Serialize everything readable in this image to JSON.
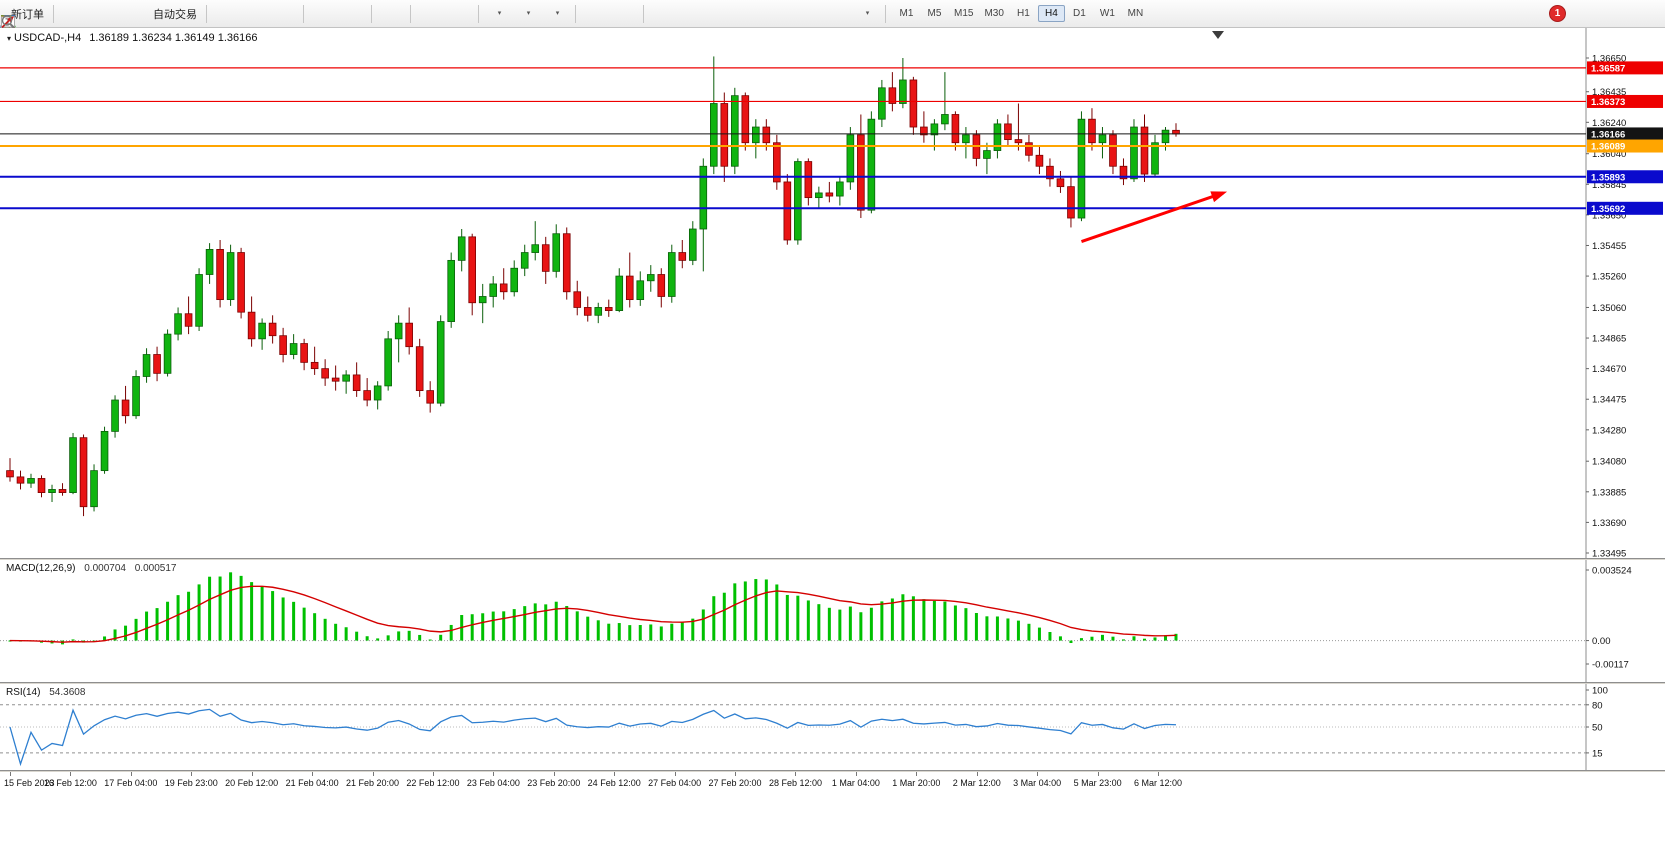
{
  "toolbar": {
    "groups": [
      {
        "items": [
          {
            "name": "new-order-button",
            "icon": "new-order",
            "label": "新订单"
          }
        ]
      },
      {
        "items": [
          {
            "name": "market-watch-button",
            "icon": "market-watch"
          },
          {
            "name": "data-window-button",
            "icon": "data-window"
          },
          {
            "name": "navigator-button",
            "icon": "navigator"
          },
          {
            "name": "autotrading-button",
            "icon": "autotrading",
            "label": "自动交易"
          }
        ]
      },
      {
        "items": [
          {
            "name": "bar-chart-button",
            "icon": "chart-bars"
          },
          {
            "name": "candlestick-chart-button",
            "icon": "chart-candles"
          },
          {
            "name": "line-chart-button",
            "icon": "chart-line"
          }
        ]
      },
      {
        "items": [
          {
            "name": "zoom-in-button",
            "icon": "zoom-in"
          },
          {
            "name": "zoom-out-button",
            "icon": "zoom-out"
          }
        ]
      },
      {
        "items": [
          {
            "name": "tile-windows-button",
            "icon": "tile-windows"
          }
        ]
      },
      {
        "items": [
          {
            "name": "arrange-windows-button",
            "icon": "arrange-1"
          },
          {
            "name": "cascade-windows-button",
            "icon": "arrange-2"
          }
        ]
      },
      {
        "items": [
          {
            "name": "new-chart-button",
            "icon": "new-chart",
            "caret": true
          },
          {
            "name": "profiles-button",
            "icon": "clock",
            "caret": true
          },
          {
            "name": "templates-button",
            "icon": "templates",
            "caret": true
          }
        ]
      },
      {
        "items": [
          {
            "name": "cursor-button",
            "icon": "cursor"
          },
          {
            "name": "crosshair-button",
            "icon": "crosshair"
          }
        ]
      },
      {
        "items": [
          {
            "name": "vertical-line-button",
            "icon": "vline"
          },
          {
            "name": "horizontal-line-button",
            "icon": "hline"
          },
          {
            "name": "trendline-button",
            "icon": "tline"
          },
          {
            "name": "equidistant-channel-button",
            "icon": "channel"
          },
          {
            "name": "fibonacci-button",
            "icon": "fib"
          },
          {
            "name": "text-button",
            "icon": "text-a"
          },
          {
            "name": "text-label-button",
            "icon": "text-t"
          },
          {
            "name": "arrows-button",
            "icon": "arrows",
            "caret": true
          }
        ]
      }
    ],
    "timeframes": {
      "items": [
        "M1",
        "M5",
        "M15",
        "M30",
        "H1",
        "H4",
        "D1",
        "W1",
        "MN"
      ],
      "active": "H4"
    },
    "notification_count": "1"
  },
  "chart": {
    "title": "USDCAD-,H4",
    "ohlc_text": "1.36189 1.36234 1.36149 1.36166"
  },
  "chart_data": {
    "type": "candlestick",
    "symbol": "USDCAD-",
    "period": "H4",
    "ohlc_display": {
      "open": "1.36189",
      "high": "1.36234",
      "low": "1.36149",
      "close": "1.36166"
    },
    "bull_color": "#10B410",
    "bear_color": "#E81414",
    "price_axis_labels": [
      "1.36650",
      "1.36435",
      "1.36240",
      "1.36040",
      "1.35845",
      "1.35650",
      "1.35455",
      "1.35260",
      "1.35060",
      "1.34865",
      "1.34670",
      "1.34475",
      "1.34280",
      "1.34080",
      "1.33885",
      "1.33690",
      "1.33495"
    ],
    "time_axis_labels": [
      "15 Feb 2023",
      "16 Feb 12:00",
      "17 Feb 04:00",
      "19 Feb 23:00",
      "20 Feb 12:00",
      "21 Feb 04:00",
      "21 Feb 20:00",
      "22 Feb 12:00",
      "23 Feb 04:00",
      "23 Feb 20:00",
      "24 Feb 12:00",
      "27 Feb 04:00",
      "27 Feb 20:00",
      "28 Feb 12:00",
      "1 Mar 04:00",
      "1 Mar 20:00",
      "2 Mar 12:00",
      "3 Mar 04:00",
      "5 Mar 23:00",
      "6 Mar 12:00"
    ],
    "horizontal_lines": [
      {
        "price": 1.36587,
        "label": "1.36587",
        "color": "#EE0000",
        "width": 1.2
      },
      {
        "price": 1.36373,
        "label": "1.36373",
        "color": "#EE0000",
        "width": 1.2
      },
      {
        "price": 1.36166,
        "label": "1.36166",
        "color": "#141414",
        "width": 1,
        "role": "bid-price"
      },
      {
        "price": 1.36089,
        "label": "1.36089",
        "color": "#FFA500",
        "width": 2
      },
      {
        "price": 1.35893,
        "label": "1.35893",
        "color": "#0A0ACD",
        "width": 2
      },
      {
        "price": 1.35692,
        "label": "1.35692",
        "color": "#0A0ACD",
        "width": 2
      }
    ],
    "annotation_arrow": {
      "from_bar": 102,
      "from_price": 1.3548,
      "to_bar": 115.5,
      "to_price": 1.3579,
      "color": "#FF0000"
    },
    "candles": [
      [
        1.3402,
        1.341,
        1.3395,
        1.3398
      ],
      [
        1.3398,
        1.3402,
        1.339,
        1.3394
      ],
      [
        1.3394,
        1.34,
        1.3391,
        1.3397
      ],
      [
        1.3397,
        1.3399,
        1.3385,
        1.3388
      ],
      [
        1.3388,
        1.3393,
        1.3382,
        1.339
      ],
      [
        1.339,
        1.3394,
        1.3386,
        1.3388
      ],
      [
        1.3388,
        1.3426,
        1.3387,
        1.3423
      ],
      [
        1.3423,
        1.3425,
        1.3373,
        1.3379
      ],
      [
        1.3379,
        1.3406,
        1.3376,
        1.3402
      ],
      [
        1.3402,
        1.343,
        1.34,
        1.3427
      ],
      [
        1.3427,
        1.345,
        1.3423,
        1.3447
      ],
      [
        1.3447,
        1.3456,
        1.3432,
        1.3437
      ],
      [
        1.3437,
        1.3466,
        1.3435,
        1.3462
      ],
      [
        1.3462,
        1.348,
        1.3458,
        1.3476
      ],
      [
        1.3476,
        1.3481,
        1.3459,
        1.3464
      ],
      [
        1.3464,
        1.3492,
        1.3462,
        1.3489
      ],
      [
        1.3489,
        1.3506,
        1.3485,
        1.3502
      ],
      [
        1.3502,
        1.3513,
        1.3489,
        1.3494
      ],
      [
        1.3494,
        1.3531,
        1.3491,
        1.3527
      ],
      [
        1.3527,
        1.3547,
        1.3521,
        1.3543
      ],
      [
        1.3543,
        1.3549,
        1.3506,
        1.3511
      ],
      [
        1.3511,
        1.3546,
        1.3507,
        1.3541
      ],
      [
        1.3541,
        1.3544,
        1.3499,
        1.3503
      ],
      [
        1.3503,
        1.3513,
        1.3481,
        1.3486
      ],
      [
        1.3486,
        1.3499,
        1.3479,
        1.3496
      ],
      [
        1.3496,
        1.3501,
        1.3483,
        1.3488
      ],
      [
        1.3488,
        1.3493,
        1.3471,
        1.3476
      ],
      [
        1.3476,
        1.3489,
        1.3473,
        1.3483
      ],
      [
        1.3483,
        1.3486,
        1.3466,
        1.3471
      ],
      [
        1.3471,
        1.3481,
        1.3463,
        1.3467
      ],
      [
        1.3467,
        1.3473,
        1.3456,
        1.3461
      ],
      [
        1.3461,
        1.3469,
        1.3453,
        1.3459
      ],
      [
        1.3459,
        1.3466,
        1.3451,
        1.3463
      ],
      [
        1.3463,
        1.3471,
        1.3449,
        1.3453
      ],
      [
        1.3453,
        1.3461,
        1.3443,
        1.3447
      ],
      [
        1.3447,
        1.3459,
        1.3441,
        1.3456
      ],
      [
        1.3456,
        1.3491,
        1.3453,
        1.3486
      ],
      [
        1.3486,
        1.3501,
        1.3471,
        1.3496
      ],
      [
        1.3496,
        1.3506,
        1.3476,
        1.3481
      ],
      [
        1.3481,
        1.3486,
        1.3449,
        1.3453
      ],
      [
        1.3453,
        1.3459,
        1.3439,
        1.3445
      ],
      [
        1.3445,
        1.3501,
        1.3443,
        1.3497
      ],
      [
        1.3497,
        1.3541,
        1.3493,
        1.3536
      ],
      [
        1.3536,
        1.3556,
        1.3529,
        1.3551
      ],
      [
        1.3551,
        1.3553,
        1.3501,
        1.3509
      ],
      [
        1.3509,
        1.3521,
        1.3496,
        1.3513
      ],
      [
        1.3513,
        1.3526,
        1.3506,
        1.3521
      ],
      [
        1.3521,
        1.3531,
        1.3511,
        1.3516
      ],
      [
        1.3516,
        1.3536,
        1.3513,
        1.3531
      ],
      [
        1.3531,
        1.3546,
        1.3526,
        1.3541
      ],
      [
        1.3541,
        1.3561,
        1.3536,
        1.3546
      ],
      [
        1.3546,
        1.3551,
        1.3521,
        1.3529
      ],
      [
        1.3529,
        1.3559,
        1.3525,
        1.3553
      ],
      [
        1.3553,
        1.3557,
        1.3511,
        1.3516
      ],
      [
        1.3516,
        1.3523,
        1.3501,
        1.3506
      ],
      [
        1.3506,
        1.3513,
        1.3497,
        1.3501
      ],
      [
        1.3501,
        1.3509,
        1.3496,
        1.3506
      ],
      [
        1.3506,
        1.3511,
        1.35,
        1.3504
      ],
      [
        1.3504,
        1.3531,
        1.3503,
        1.3526
      ],
      [
        1.3526,
        1.3541,
        1.3506,
        1.3511
      ],
      [
        1.3511,
        1.3529,
        1.3507,
        1.3523
      ],
      [
        1.3523,
        1.3533,
        1.3516,
        1.3527
      ],
      [
        1.3527,
        1.3531,
        1.3506,
        1.3513
      ],
      [
        1.3513,
        1.3546,
        1.3509,
        1.3541
      ],
      [
        1.3541,
        1.3549,
        1.3531,
        1.3536
      ],
      [
        1.3536,
        1.3561,
        1.3533,
        1.3556
      ],
      [
        1.3556,
        1.3601,
        1.3529,
        1.3596
      ],
      [
        1.3596,
        1.3666,
        1.3591,
        1.3636
      ],
      [
        1.3636,
        1.3643,
        1.3586,
        1.3596
      ],
      [
        1.3596,
        1.3646,
        1.3591,
        1.3641
      ],
      [
        1.3641,
        1.3643,
        1.3606,
        1.3611
      ],
      [
        1.3611,
        1.3626,
        1.3601,
        1.3621
      ],
      [
        1.3621,
        1.3626,
        1.3606,
        1.3611
      ],
      [
        1.3611,
        1.3616,
        1.3581,
        1.3586
      ],
      [
        1.3586,
        1.3591,
        1.3546,
        1.3549
      ],
      [
        1.3549,
        1.3601,
        1.3546,
        1.3599
      ],
      [
        1.3599,
        1.3601,
        1.3571,
        1.3576
      ],
      [
        1.3576,
        1.3583,
        1.3569,
        1.3579
      ],
      [
        1.3579,
        1.3586,
        1.3573,
        1.3577
      ],
      [
        1.3577,
        1.3589,
        1.3571,
        1.3586
      ],
      [
        1.3586,
        1.3621,
        1.3581,
        1.3616
      ],
      [
        1.3616,
        1.3629,
        1.3563,
        1.3568
      ],
      [
        1.3568,
        1.3631,
        1.3566,
        1.3626
      ],
      [
        1.3626,
        1.3651,
        1.3621,
        1.3646
      ],
      [
        1.3646,
        1.3656,
        1.3631,
        1.3636
      ],
      [
        1.3636,
        1.3665,
        1.3633,
        1.3651
      ],
      [
        1.3651,
        1.3653,
        1.3616,
        1.3621
      ],
      [
        1.3621,
        1.3631,
        1.3611,
        1.3616
      ],
      [
        1.3616,
        1.3626,
        1.3606,
        1.3623
      ],
      [
        1.3623,
        1.3656,
        1.3619,
        1.3629
      ],
      [
        1.3629,
        1.3631,
        1.3606,
        1.3611
      ],
      [
        1.3611,
        1.3621,
        1.3601,
        1.3616
      ],
      [
        1.3616,
        1.3619,
        1.3596,
        1.3601
      ],
      [
        1.3601,
        1.3611,
        1.3591,
        1.3606
      ],
      [
        1.3606,
        1.3626,
        1.3601,
        1.3623
      ],
      [
        1.3623,
        1.3629,
        1.3609,
        1.3613
      ],
      [
        1.3613,
        1.3636,
        1.3606,
        1.3611
      ],
      [
        1.3611,
        1.3616,
        1.3599,
        1.3603
      ],
      [
        1.3603,
        1.3609,
        1.3591,
        1.3596
      ],
      [
        1.3596,
        1.3601,
        1.3583,
        1.3588
      ],
      [
        1.3588,
        1.3593,
        1.3579,
        1.3583
      ],
      [
        1.3583,
        1.3589,
        1.3557,
        1.3563
      ],
      [
        1.3563,
        1.3631,
        1.3561,
        1.3626
      ],
      [
        1.3626,
        1.3633,
        1.3606,
        1.3611
      ],
      [
        1.3611,
        1.3621,
        1.3601,
        1.3616
      ],
      [
        1.3616,
        1.3619,
        1.3591,
        1.3596
      ],
      [
        1.3596,
        1.3601,
        1.3584,
        1.3588
      ],
      [
        1.3588,
        1.3626,
        1.3586,
        1.3621
      ],
      [
        1.3621,
        1.3629,
        1.3586,
        1.3591
      ],
      [
        1.3591,
        1.3616,
        1.3589,
        1.3611
      ],
      [
        1.3611,
        1.3621,
        1.3606,
        1.3619
      ],
      [
        1.36189,
        1.36234,
        1.36149,
        1.36166
      ]
    ],
    "macd": {
      "label": "MACD(12,26,9)",
      "values_text": [
        "0.000704",
        "0.000517"
      ],
      "fast": 12,
      "slow": 26,
      "signal": 9,
      "scale_max": 0.003524,
      "scale_min": -0.00117,
      "scale_labels": [
        {
          "text": "0.003524",
          "value": 0.003524
        },
        {
          "text": "0.00",
          "value": 0
        },
        {
          "text": "-0.00117",
          "value": -0.00117
        }
      ],
      "histogram_color": "#00C000",
      "signal_color": "#D40000"
    },
    "rsi": {
      "label": "RSI(14)",
      "value_text": "54.3608",
      "period": 14,
      "levels": [
        80,
        50,
        15
      ],
      "scale_labels": [
        {
          "text": "100",
          "value": 100
        },
        {
          "text": "80",
          "value": 80
        },
        {
          "text": "50",
          "value": 50
        },
        {
          "text": "15",
          "value": 15
        }
      ],
      "line_color": "#2E7FD0"
    }
  }
}
